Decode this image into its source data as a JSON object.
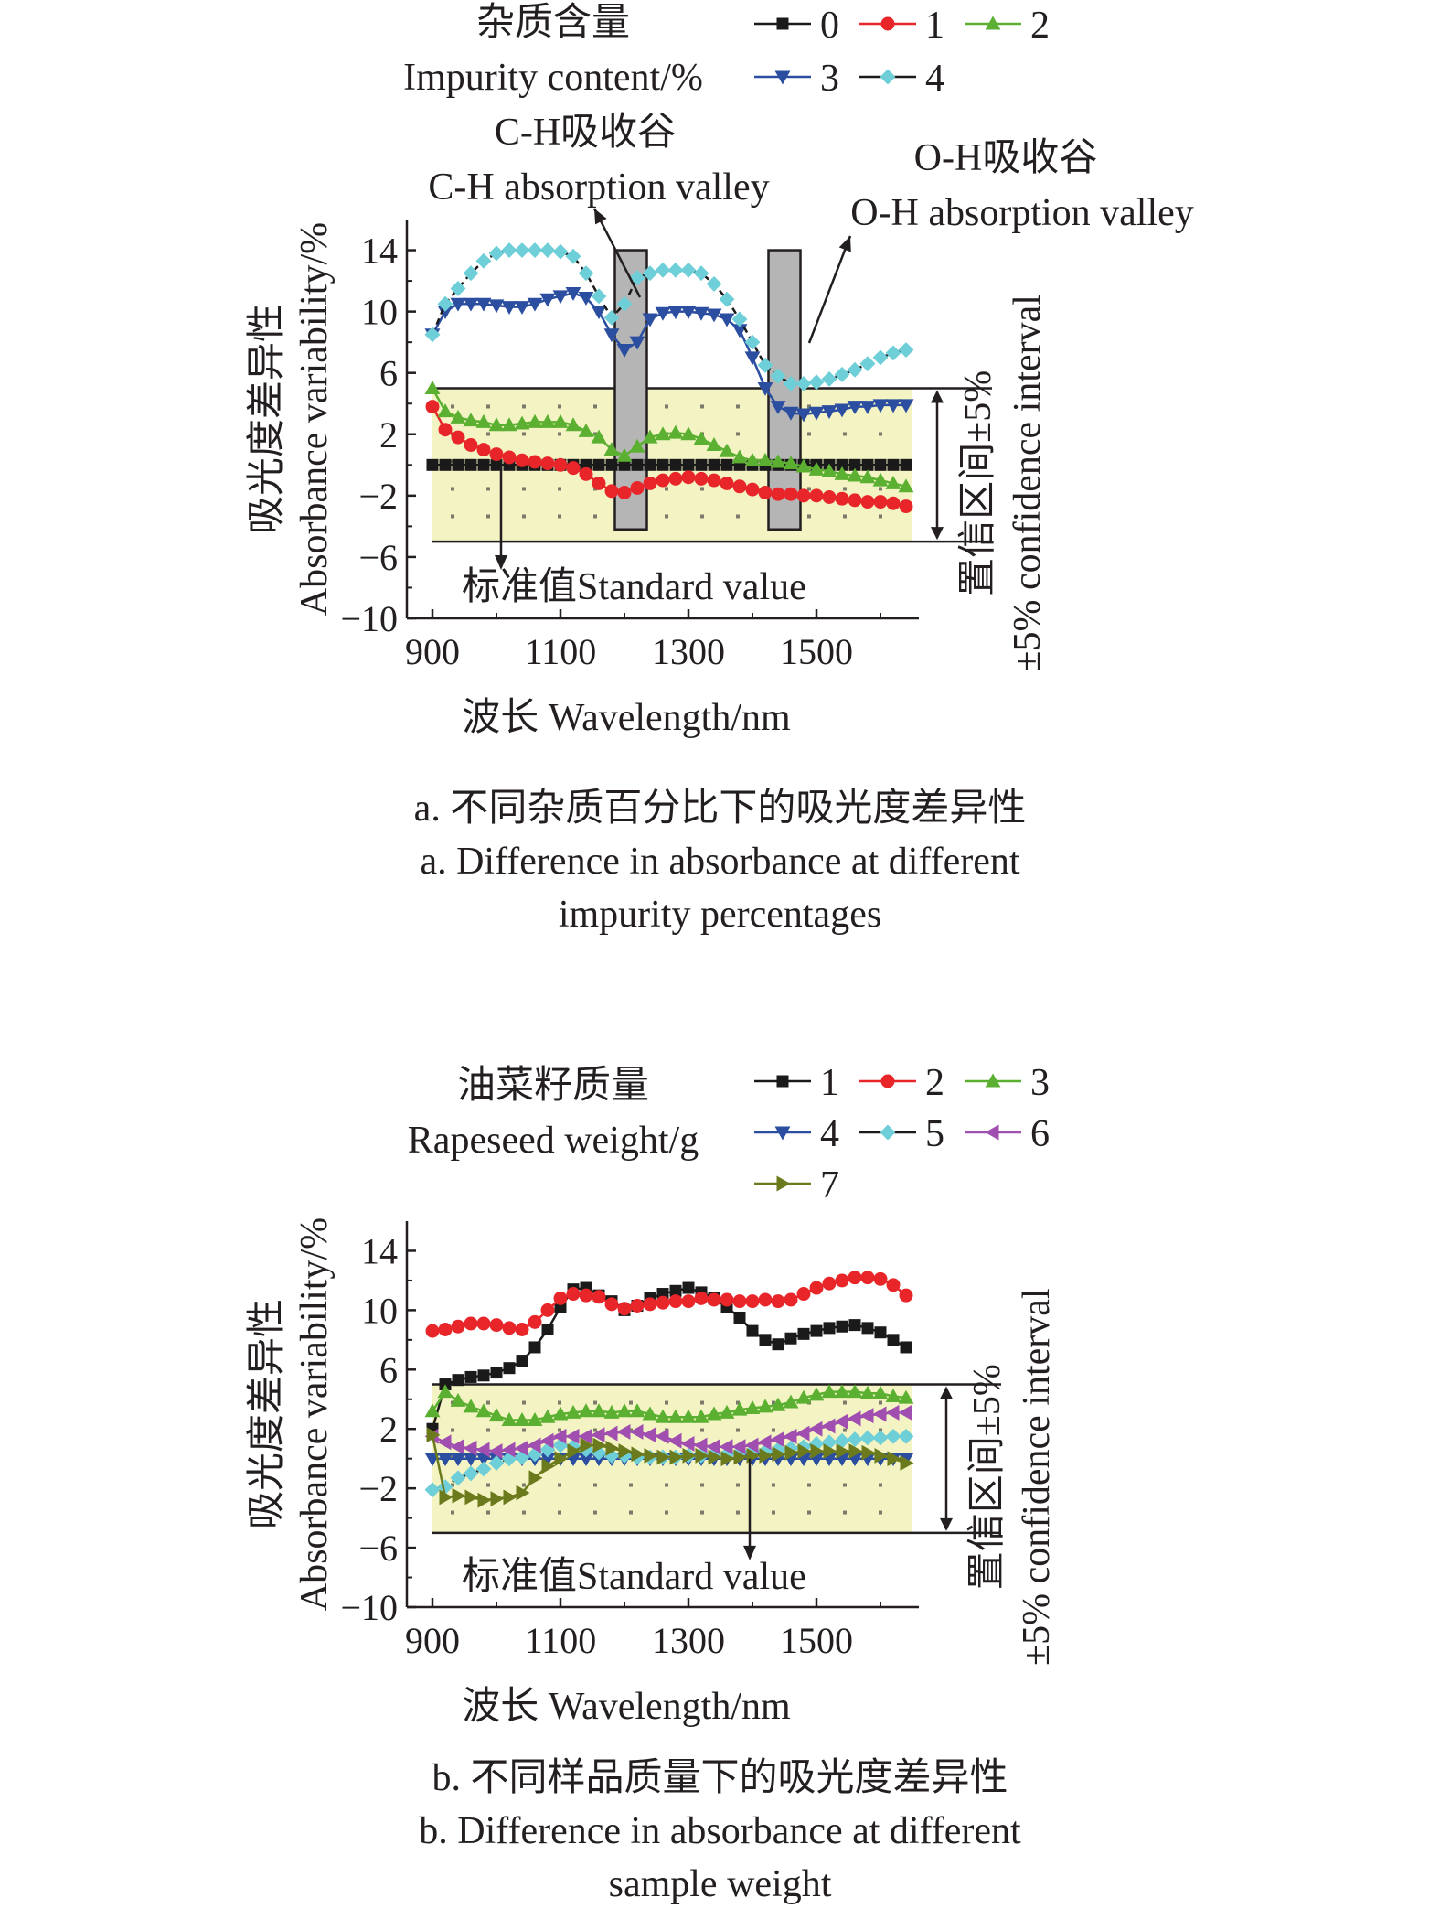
{
  "chart_data": [
    {
      "type": "line",
      "panel": "a",
      "xlabel": "波长 Wavelength/nm",
      "ylabel_cn": "吸光度差异性",
      "ylabel_en": "Absorbance variability/%",
      "xlim": [
        860,
        1660
      ],
      "ylim": [
        -10,
        16
      ],
      "xticks": [
        900,
        1100,
        1300,
        1500
      ],
      "yticks": [
        -10,
        -6,
        -2,
        2,
        6,
        10,
        14
      ],
      "ytick_labels": [
        "−10",
        "−6",
        "−2",
        "2",
        "6",
        "10",
        "14"
      ],
      "confidence_band": [
        -5,
        5
      ],
      "right_label_cn": "置信区间±5%",
      "right_label_en": "±5% confidence interval",
      "standard_label": "标准值Standard value",
      "legend_title_cn": "杂质含量",
      "legend_title_en": "Impurity content/%",
      "annotations": {
        "ch_cn": "C-H吸收谷",
        "ch_en": "C-H absorption valley",
        "oh_cn": "O-H吸收谷",
        "oh_en": "O-H absorption valley"
      },
      "valleys": [
        [
          1185,
          1235
        ],
        [
          1425,
          1475
        ]
      ],
      "x": [
        900,
        920,
        940,
        960,
        980,
        1000,
        1020,
        1040,
        1060,
        1080,
        1100,
        1120,
        1140,
        1160,
        1180,
        1200,
        1220,
        1240,
        1260,
        1280,
        1300,
        1320,
        1340,
        1360,
        1380,
        1400,
        1420,
        1440,
        1460,
        1480,
        1500,
        1520,
        1540,
        1560,
        1580,
        1600,
        1620,
        1640
      ],
      "series": [
        {
          "name": "0",
          "marker": "square",
          "color": "#1a1a1a",
          "values": [
            0,
            0,
            0,
            0,
            0,
            0,
            0,
            0,
            0,
            0,
            0,
            0,
            0,
            0,
            0,
            0,
            0,
            0,
            0,
            0,
            0,
            0,
            0,
            0,
            0,
            0,
            0,
            0,
            0,
            0,
            0,
            0,
            0,
            0,
            0,
            0,
            0,
            0
          ]
        },
        {
          "name": "1",
          "marker": "circle",
          "color": "#e8262a",
          "values": [
            3.8,
            2.3,
            1.8,
            1.3,
            1.0,
            0.7,
            0.5,
            0.3,
            0.2,
            0.1,
            0.0,
            -0.2,
            -0.6,
            -1.2,
            -1.7,
            -1.8,
            -1.5,
            -1.2,
            -1.0,
            -0.9,
            -0.8,
            -0.9,
            -1.0,
            -1.2,
            -1.4,
            -1.6,
            -1.8,
            -1.9,
            -1.9,
            -2.0,
            -2.0,
            -2.1,
            -2.2,
            -2.3,
            -2.4,
            -2.4,
            -2.5,
            -2.7
          ]
        },
        {
          "name": "2",
          "marker": "triangle-up",
          "color": "#5bb031",
          "values": [
            5.0,
            3.5,
            3.1,
            2.9,
            2.8,
            2.6,
            2.6,
            2.7,
            2.8,
            2.8,
            2.8,
            2.6,
            2.2,
            1.8,
            1.0,
            0.6,
            1.2,
            1.8,
            2.0,
            2.1,
            2.0,
            1.7,
            1.3,
            0.9,
            0.5,
            0.3,
            0.3,
            0.2,
            0.1,
            -0.1,
            -0.3,
            -0.4,
            -0.6,
            -0.7,
            -0.8,
            -1.0,
            -1.2,
            -1.4
          ]
        },
        {
          "name": "3",
          "marker": "triangle-down",
          "color": "#2b4ea0",
          "values": [
            8.5,
            10.0,
            10.5,
            10.5,
            10.5,
            10.4,
            10.3,
            10.3,
            10.5,
            10.8,
            11.0,
            11.2,
            10.9,
            10.0,
            8.5,
            7.5,
            8.0,
            9.5,
            9.9,
            10.0,
            10.0,
            9.9,
            9.8,
            9.5,
            8.8,
            7.0,
            5.0,
            3.8,
            3.4,
            3.3,
            3.4,
            3.5,
            3.6,
            3.8,
            3.8,
            3.9,
            3.9,
            3.9
          ]
        },
        {
          "name": "4",
          "marker": "diamond",
          "color": "#6fcfd8",
          "values": [
            8.5,
            10.5,
            11.5,
            12.5,
            13.3,
            13.8,
            14.0,
            14.0,
            14.0,
            14.0,
            13.9,
            13.6,
            12.5,
            11.0,
            9.6,
            10.5,
            12.2,
            12.5,
            12.7,
            12.7,
            12.7,
            12.5,
            11.8,
            10.8,
            9.5,
            8.0,
            6.5,
            5.8,
            5.3,
            5.3,
            5.4,
            5.6,
            5.9,
            6.2,
            6.6,
            7.0,
            7.3,
            7.5
          ]
        }
      ]
    },
    {
      "type": "line",
      "panel": "b",
      "xlabel": "波长 Wavelength/nm",
      "ylabel_cn": "吸光度差异性",
      "ylabel_en": "Absorbance variability/%",
      "xlim": [
        860,
        1660
      ],
      "ylim": [
        -10,
        16
      ],
      "xticks": [
        900,
        1100,
        1300,
        1500
      ],
      "yticks": [
        -10,
        -6,
        -2,
        2,
        6,
        10,
        14
      ],
      "ytick_labels": [
        "−10",
        "−6",
        "−2",
        "2",
        "6",
        "10",
        "14"
      ],
      "confidence_band": [
        -5,
        5
      ],
      "right_label_cn": "置信区间±5%",
      "right_label_en": "±5% confidence interval",
      "standard_label": "标准值Standard value",
      "legend_title_cn": "油菜籽质量",
      "legend_title_en": "Rapeseed weight/g",
      "x": [
        900,
        920,
        940,
        960,
        980,
        1000,
        1020,
        1040,
        1060,
        1080,
        1100,
        1120,
        1140,
        1160,
        1180,
        1200,
        1220,
        1240,
        1260,
        1280,
        1300,
        1320,
        1340,
        1360,
        1380,
        1400,
        1420,
        1440,
        1460,
        1480,
        1500,
        1520,
        1540,
        1560,
        1580,
        1600,
        1620,
        1640
      ],
      "series": [
        {
          "name": "1",
          "marker": "square",
          "color": "#1a1a1a",
          "values": [
            2.0,
            5.0,
            5.3,
            5.5,
            5.6,
            5.8,
            6.1,
            6.6,
            7.5,
            8.7,
            10.2,
            11.4,
            11.5,
            11.0,
            10.6,
            10.0,
            10.3,
            10.8,
            11.1,
            11.3,
            11.5,
            11.2,
            10.8,
            10.2,
            9.5,
            8.6,
            8.0,
            7.7,
            8.1,
            8.4,
            8.6,
            8.8,
            8.9,
            9.0,
            8.8,
            8.5,
            8.0,
            7.5
          ]
        },
        {
          "name": "2",
          "marker": "circle",
          "color": "#e8262a",
          "values": [
            8.6,
            8.7,
            8.9,
            9.1,
            9.1,
            9.0,
            8.8,
            8.7,
            9.2,
            10.0,
            10.8,
            11.1,
            11.0,
            10.9,
            10.4,
            10.1,
            10.3,
            10.4,
            10.5,
            10.6,
            10.6,
            10.8,
            10.7,
            10.7,
            10.6,
            10.6,
            10.7,
            10.6,
            10.7,
            11.1,
            11.5,
            11.8,
            12.0,
            12.2,
            12.2,
            12.1,
            11.7,
            11.0
          ]
        },
        {
          "name": "3",
          "marker": "triangle-up",
          "color": "#5bb031",
          "values": [
            3.2,
            4.5,
            3.9,
            3.5,
            3.2,
            2.9,
            2.6,
            2.6,
            2.6,
            2.8,
            3.0,
            3.1,
            3.2,
            3.2,
            3.1,
            3.2,
            3.2,
            3.0,
            2.8,
            2.8,
            2.8,
            2.8,
            3.0,
            3.1,
            3.3,
            3.4,
            3.5,
            3.6,
            3.8,
            4.1,
            4.3,
            4.5,
            4.5,
            4.5,
            4.4,
            4.4,
            4.2,
            4.1
          ]
        },
        {
          "name": "4",
          "marker": "triangle-down",
          "color": "#2b4ea0",
          "values": [
            0,
            0,
            0,
            0,
            0,
            0,
            0,
            0,
            0,
            0,
            0,
            0,
            0,
            0,
            0,
            0,
            0,
            0,
            0,
            0,
            0,
            0,
            0,
            0,
            0,
            0,
            0,
            0,
            0,
            0,
            0,
            0,
            0,
            0,
            0,
            0,
            0,
            0
          ]
        },
        {
          "name": "5",
          "marker": "diamond",
          "color": "#6fcfd8",
          "values": [
            -2.1,
            -1.9,
            -1.3,
            -1.0,
            -0.7,
            -0.3,
            0.0,
            0.1,
            0.3,
            0.6,
            0.9,
            0.8,
            0.6,
            0.4,
            0.2,
            0.2,
            0.1,
            0.1,
            0.1,
            0.1,
            0.2,
            0.2,
            0.3,
            0.3,
            0.4,
            0.5,
            0.5,
            0.6,
            0.7,
            0.8,
            1.0,
            1.1,
            1.2,
            1.3,
            1.4,
            1.4,
            1.5,
            1.5
          ]
        },
        {
          "name": "6",
          "marker": "triangle-left",
          "color": "#a04fb0",
          "values": [
            1.5,
            1.1,
            0.8,
            0.7,
            0.6,
            0.5,
            0.6,
            0.7,
            0.9,
            1.2,
            1.5,
            1.5,
            1.5,
            1.6,
            1.7,
            1.8,
            1.8,
            1.6,
            1.5,
            1.2,
            1.0,
            0.9,
            0.8,
            0.8,
            0.8,
            0.9,
            1.1,
            1.3,
            1.5,
            1.7,
            2.0,
            2.2,
            2.5,
            2.7,
            2.9,
            3.0,
            3.1,
            3.1
          ]
        },
        {
          "name": "7",
          "marker": "triangle-right",
          "color": "#6b7a1c",
          "values": [
            1.6,
            -2.6,
            -2.5,
            -2.6,
            -2.8,
            -2.7,
            -2.6,
            -2.3,
            -1.3,
            -0.5,
            0.0,
            0.5,
            0.9,
            0.9,
            0.7,
            0.5,
            0.3,
            0.2,
            0.1,
            0.1,
            0.2,
            0.2,
            0.1,
            0.0,
            0.1,
            0.2,
            0.2,
            0.3,
            0.4,
            0.5,
            0.5,
            0.5,
            0.5,
            0.5,
            0.4,
            0.2,
            0.0,
            -0.3
          ]
        }
      ]
    }
  ],
  "captions": {
    "a_cn": "a. 不同杂质百分比下的吸光度差异性",
    "a_en1": "a. Difference in absorbance at different",
    "a_en2": "impurity percentages",
    "b_cn": "b. 不同样品质量下的吸光度差异性",
    "b_en1": "b. Difference in absorbance at different",
    "b_en2": "sample weight"
  }
}
